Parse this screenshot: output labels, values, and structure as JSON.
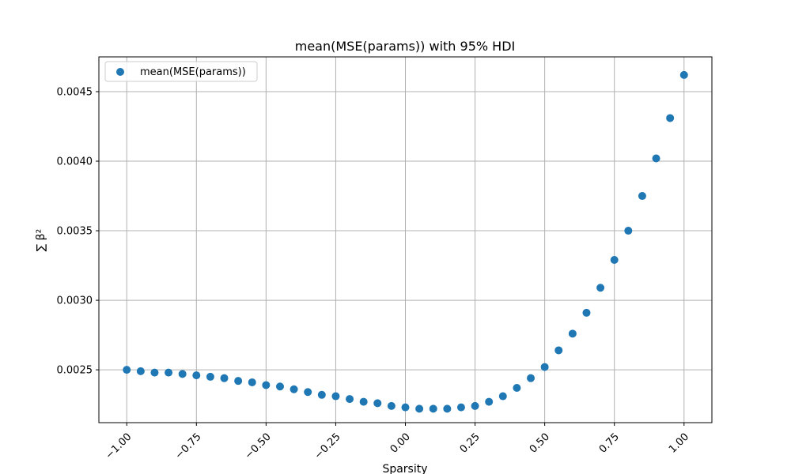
{
  "chart_data": {
    "type": "scatter",
    "title": "mean(MSE(params)) with 95% HDI",
    "xlabel": "Sparsity",
    "ylabel": "∑ β²",
    "xlim": [
      -1.1,
      1.1
    ],
    "ylim": [
      0.00212,
      0.00475
    ],
    "grid": true,
    "legend_position": "top-left",
    "x_ticks": [
      -1.0,
      -0.75,
      -0.5,
      -0.25,
      0.0,
      0.25,
      0.5,
      0.75,
      1.0
    ],
    "x_tick_labels": [
      "−1.00",
      "−0.75",
      "−0.50",
      "−0.25",
      "0.00",
      "0.25",
      "0.50",
      "0.75",
      "1.00"
    ],
    "y_ticks": [
      0.0025,
      0.003,
      0.0035,
      0.004,
      0.0045
    ],
    "y_tick_labels": [
      "0.0025",
      "0.0030",
      "0.0035",
      "0.0040",
      "0.0045"
    ],
    "series": [
      {
        "name": "mean(MSE(params))",
        "color": "#1f77b4",
        "x": [
          -1.0,
          -0.95,
          -0.9,
          -0.85,
          -0.8,
          -0.75,
          -0.7,
          -0.65,
          -0.6,
          -0.55,
          -0.5,
          -0.45,
          -0.4,
          -0.35,
          -0.3,
          -0.25,
          -0.2,
          -0.15,
          -0.1,
          -0.05,
          0.0,
          0.05,
          0.1,
          0.15,
          0.2,
          0.25,
          0.3,
          0.35,
          0.4,
          0.45,
          0.5,
          0.55,
          0.6,
          0.65,
          0.7,
          0.75,
          0.8,
          0.85,
          0.9,
          0.95,
          1.0
        ],
        "y": [
          0.0025,
          0.00249,
          0.00248,
          0.00248,
          0.00247,
          0.00246,
          0.00245,
          0.00244,
          0.00242,
          0.00241,
          0.00239,
          0.00238,
          0.00236,
          0.00234,
          0.00232,
          0.00231,
          0.00229,
          0.00227,
          0.00226,
          0.00224,
          0.00223,
          0.00222,
          0.00222,
          0.00222,
          0.00223,
          0.00224,
          0.00227,
          0.00231,
          0.00237,
          0.00244,
          0.00252,
          0.00264,
          0.00276,
          0.00291,
          0.00309,
          0.00329,
          0.0035,
          0.00375,
          0.00402,
          0.00431,
          0.00462
        ]
      }
    ]
  }
}
